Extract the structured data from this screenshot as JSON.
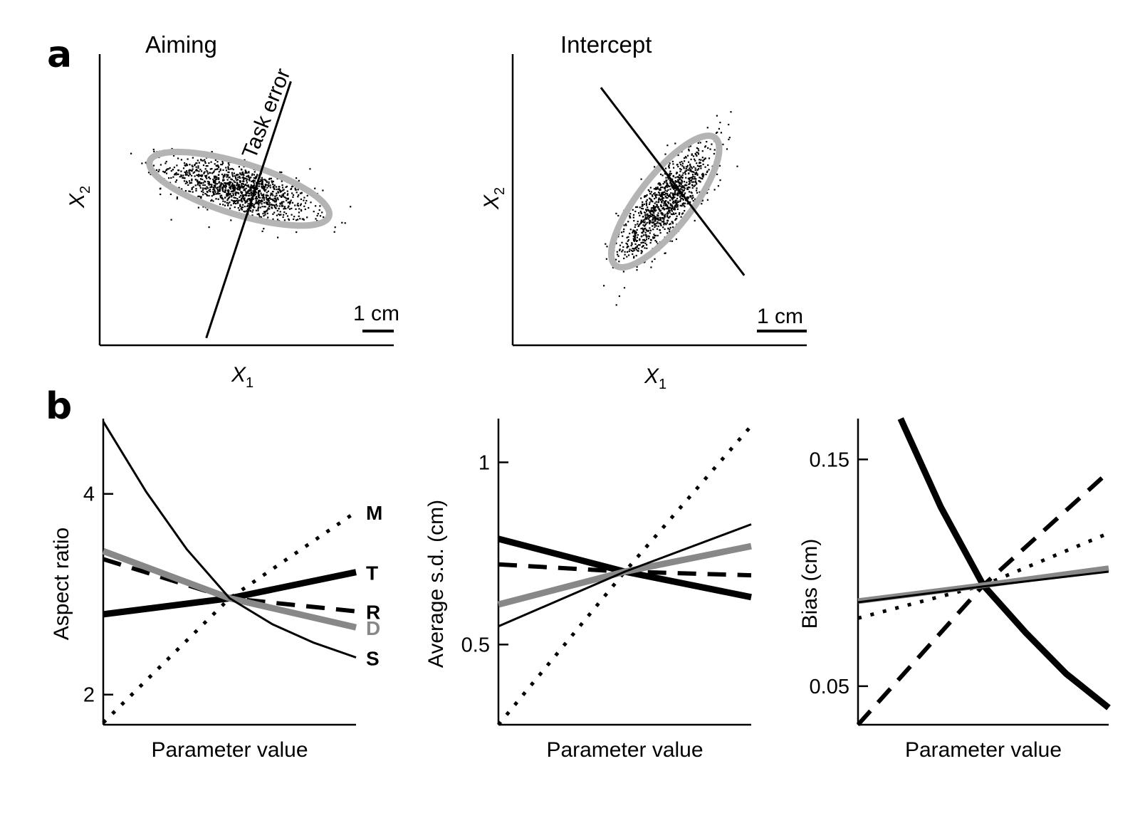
{
  "panel_labels": {
    "a": "a",
    "b": "b"
  },
  "colors": {
    "black": "#000000",
    "gray": "#888888",
    "ellipse": "#b4b4b4"
  },
  "chart_data": [
    {
      "id": "aiming",
      "type": "scatter",
      "title": "Aiming",
      "xlabel_var": "X",
      "xlabel_sub": "1",
      "ylabel_var": "X",
      "ylabel_sub": "2",
      "xlim": [
        -4,
        4
      ],
      "ylim": [
        -4,
        4
      ],
      "scale_bar_label": "1 cm",
      "annotation": "Task error",
      "ellipse": {
        "cx": -0.2,
        "cy": 0.3,
        "rx": 2.55,
        "ry": 0.7,
        "angle_deg": -17
      },
      "task_line": {
        "x1": -1.1,
        "y1": -3.8,
        "x2": 1.2,
        "y2": 3.25
      },
      "cloud": {
        "n_points": 1200,
        "center": [
          -0.2,
          0.3
        ],
        "sd_major": 1.0,
        "sd_minor": 0.32,
        "angle_deg": -17
      }
    },
    {
      "id": "intercept",
      "type": "scatter",
      "title": "Intercept",
      "xlabel_var": "X",
      "xlabel_sub": "1",
      "ylabel_var": "X",
      "ylabel_sub": "2",
      "xlim": [
        -4,
        4
      ],
      "ylim": [
        -4,
        4
      ],
      "scale_bar_label": "1 cm",
      "ellipse": {
        "cx": 0.15,
        "cy": -0.05,
        "rx": 2.2,
        "ry": 0.72,
        "angle_deg": 52
      },
      "task_line": {
        "x1": -1.6,
        "y1": 3.08,
        "x2": 2.3,
        "y2": -2.08
      },
      "cloud": {
        "n_points": 1100,
        "center": [
          0.15,
          -0.05
        ],
        "sd_major": 0.95,
        "sd_minor": 0.32,
        "angle_deg": 52
      }
    },
    {
      "id": "aspect-ratio",
      "type": "line",
      "ylabel": "Aspect ratio",
      "xlabel": "Parameter value",
      "xlim": [
        0,
        1
      ],
      "ylim": [
        1.7,
        4.75
      ],
      "yticks": [
        2,
        4
      ],
      "ytick_labels": [
        "2",
        "4"
      ],
      "series": [
        {
          "name": "M",
          "style": "dotted",
          "color": "#000000",
          "width": 5,
          "x": [
            0,
            0.5,
            1
          ],
          "y": [
            1.72,
            2.96,
            3.82
          ]
        },
        {
          "name": "T",
          "style": "solid",
          "color": "#000000",
          "width": 9,
          "x": [
            0,
            0.5,
            1
          ],
          "y": [
            2.8,
            2.96,
            3.22
          ]
        },
        {
          "name": "R",
          "style": "dashed",
          "color": "#000000",
          "width": 6,
          "x": [
            0,
            0.5,
            1
          ],
          "y": [
            3.35,
            2.96,
            2.83
          ]
        },
        {
          "name": "D",
          "style": "solid",
          "color": "#888888",
          "width": 9,
          "x": [
            0,
            0.5,
            1
          ],
          "y": [
            3.43,
            2.96,
            2.67
          ]
        },
        {
          "name": "S",
          "style": "solid",
          "color": "#000000",
          "width": 3,
          "x": [
            0,
            0.17,
            0.33,
            0.5,
            0.67,
            0.83,
            1
          ],
          "y": [
            4.72,
            4.02,
            3.45,
            2.96,
            2.7,
            2.52,
            2.37
          ]
        }
      ]
    },
    {
      "id": "average-sd",
      "type": "line",
      "ylabel": "Average s.d. (cm)",
      "xlabel": "Parameter value",
      "xlim": [
        0,
        1
      ],
      "ylim": [
        0.28,
        1.12
      ],
      "yticks": [
        0.5,
        1
      ],
      "ytick_labels": [
        "0.5",
        "1"
      ],
      "series": [
        {
          "name": "M",
          "style": "dotted",
          "color": "#000000",
          "width": 5,
          "x": [
            0,
            0.5,
            1
          ],
          "y": [
            0.28,
            0.7,
            1.1
          ]
        },
        {
          "name": "T",
          "style": "solid",
          "color": "#000000",
          "width": 9,
          "x": [
            0,
            0.5,
            1
          ],
          "y": [
            0.79,
            0.7,
            0.63
          ]
        },
        {
          "name": "R",
          "style": "dashed",
          "color": "#000000",
          "width": 6,
          "x": [
            0,
            0.5,
            1
          ],
          "y": [
            0.72,
            0.7,
            0.69
          ]
        },
        {
          "name": "D",
          "style": "solid",
          "color": "#888888",
          "width": 9,
          "x": [
            0,
            0.5,
            1
          ],
          "y": [
            0.61,
            0.7,
            0.77
          ]
        },
        {
          "name": "S",
          "style": "solid",
          "color": "#000000",
          "width": 3,
          "x": [
            0,
            0.5,
            1
          ],
          "y": [
            0.55,
            0.7,
            0.83
          ]
        }
      ]
    },
    {
      "id": "bias",
      "type": "line",
      "ylabel": "Bias (cm)",
      "xlabel": "Parameter value",
      "xlim": [
        0,
        1
      ],
      "ylim": [
        0.033,
        0.168
      ],
      "yticks": [
        0.05,
        0.15
      ],
      "ytick_labels": [
        "0.05",
        "0.15"
      ],
      "series": [
        {
          "name": "M",
          "style": "dotted",
          "color": "#000000",
          "width": 5,
          "x": [
            0,
            0.5,
            1
          ],
          "y": [
            0.08,
            0.0945,
            0.1175
          ]
        },
        {
          "name": "T",
          "style": "solid",
          "color": "#000000",
          "width": 9,
          "x": [
            0.17,
            0.33,
            0.5,
            0.67,
            0.83,
            1
          ],
          "y": [
            0.168,
            0.129,
            0.0945,
            0.0735,
            0.0555,
            0.0405
          ]
        },
        {
          "name": "R",
          "style": "dashed",
          "color": "#000000",
          "width": 6,
          "x": [
            0,
            0.5,
            1
          ],
          "y": [
            0.033,
            0.0945,
            0.1445
          ]
        },
        {
          "name": "D",
          "style": "solid",
          "color": "#888888",
          "width": 8,
          "x": [
            0,
            0.5,
            1
          ],
          "y": [
            0.0875,
            0.0945,
            0.102
          ]
        },
        {
          "name": "S",
          "style": "solid",
          "color": "#000000",
          "width": 3,
          "x": [
            0,
            0.5,
            1
          ],
          "y": [
            0.087,
            0.094,
            0.1005
          ]
        }
      ]
    }
  ]
}
